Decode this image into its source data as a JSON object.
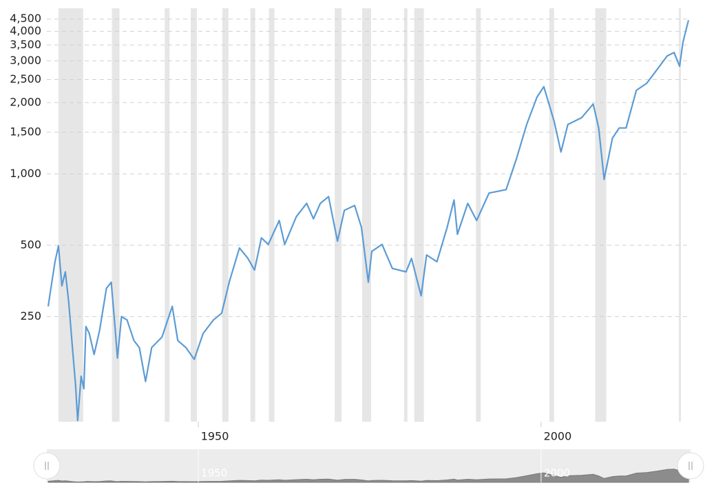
{
  "chart_data": {
    "type": "line",
    "log_y": true,
    "grid": true,
    "x": [
      1928.1,
      1928.4,
      1929.1,
      1929.6,
      1930.1,
      1930.6,
      1931.1,
      1931.6,
      1932.1,
      1932.4,
      1932.9,
      1933.3,
      1933.6,
      1934.1,
      1934.8,
      1935.6,
      1936.6,
      1937.3,
      1937.8,
      1938.2,
      1938.8,
      1939.6,
      1940.6,
      1941.4,
      1942.3,
      1943.2,
      1944.7,
      1946.2,
      1947.0,
      1948.2,
      1949.4,
      1950.7,
      1952.2,
      1953.4,
      1954.5,
      1956.0,
      1957.2,
      1958.2,
      1959.2,
      1960.2,
      1961.8,
      1962.6,
      1964.3,
      1965.8,
      1966.8,
      1967.8,
      1969.0,
      1970.3,
      1971.3,
      1972.8,
      1973.8,
      1974.8,
      1975.3,
      1976.8,
      1978.3,
      1980.3,
      1981.1,
      1982.5,
      1983.3,
      1984.8,
      1986.3,
      1987.3,
      1987.8,
      1989.3,
      1990.6,
      1992.4,
      1994.9,
      1996.4,
      1997.9,
      1999.4,
      2000.4,
      2001.9,
      2002.9,
      2003.9,
      2005.9,
      2007.6,
      2008.4,
      2009.2,
      2010.4,
      2011.4,
      2012.4,
      2013.9,
      2015.4,
      2016.9,
      2018.4,
      2019.4,
      2020.2,
      2020.7,
      2021.5
    ],
    "series": [
      {
        "color": "#5b9bd5",
        "values": [
          276,
          316,
          426,
          497,
          337,
          386,
          286,
          191,
          128,
          91,
          140,
          124,
          227,
          212,
          173,
          219,
          329,
          349,
          234,
          167,
          250,
          242,
          198,
          185,
          133,
          185,
          205,
          276,
          198,
          185,
          165,
          212,
          242,
          258,
          349,
          487,
          441,
          393,
          537,
          504,
          636,
          504,
          660,
          751,
          646,
          751,
          802,
          520,
          702,
          736,
          595,
          349,
          471,
          504,
          399,
          386,
          440,
          306,
          455,
          426,
          595,
          776,
          556,
          751,
          636,
          830,
          858,
          1158,
          1617,
          2110,
          2333,
          1670,
          1237,
          1617,
          1726,
          1973,
          1563,
          948,
          1414,
          1563,
          1563,
          2253,
          2411,
          2752,
          3147,
          3252,
          2848,
          3600,
          4451
        ]
      }
    ],
    "recessions": [
      [
        1929.6,
        1933.2
      ],
      [
        1937.4,
        1938.5
      ],
      [
        1945.1,
        1945.8
      ],
      [
        1948.9,
        1949.8
      ],
      [
        1953.5,
        1954.4
      ],
      [
        1957.6,
        1958.3
      ],
      [
        1960.3,
        1961.1
      ],
      [
        1969.9,
        1970.9
      ],
      [
        1973.9,
        1975.2
      ],
      [
        1980.0,
        1980.5
      ],
      [
        1981.5,
        1982.9
      ],
      [
        1990.5,
        1991.2
      ],
      [
        2001.2,
        2001.9
      ],
      [
        2007.9,
        2009.5
      ],
      [
        2020.1,
        2020.4
      ]
    ],
    "xlim": [
      1927.9,
      2021.8
    ],
    "xticks": [
      1950,
      2000
    ],
    "ylim": [
      90,
      5000
    ],
    "yticks": [
      250,
      500,
      {
        "value": 1000,
        "label": "1,000"
      },
      {
        "value": 1500,
        "label": "1,500"
      },
      {
        "value": 2000,
        "label": "2,000"
      },
      {
        "value": 2500,
        "label": "2,500"
      },
      {
        "value": 3000,
        "label": "3,000"
      },
      {
        "value": 3500,
        "label": "3,500"
      },
      {
        "value": 4000,
        "label": "4,000"
      },
      {
        "value": 4500,
        "label": "4,500"
      }
    ]
  }
}
